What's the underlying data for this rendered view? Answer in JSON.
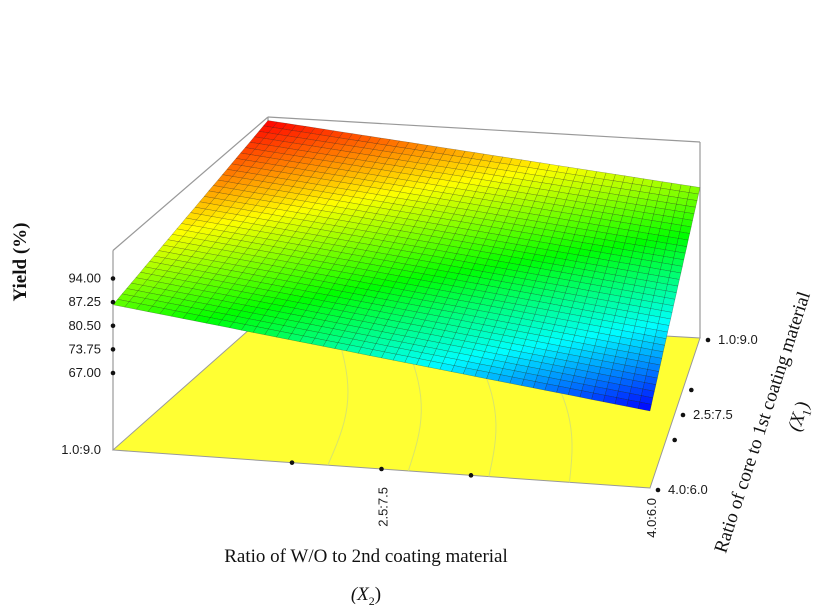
{
  "chart_data": {
    "type": "surface",
    "zlabel": "Yield (%)",
    "z_ticks": [
      "67.00",
      "73.75",
      "80.50",
      "87.25",
      "94.00"
    ],
    "zlim": [
      67.0,
      94.0
    ],
    "x2": {
      "label": "Ratio of W/O to 2nd coating material",
      "symbol": "(X",
      "subscript": "2",
      "close": ")",
      "ticks": [
        "1.0:9.0",
        "2.5:7.5",
        "4.0:6.0"
      ]
    },
    "x1": {
      "label": "Ratio of core to 1st coating material",
      "symbol": "(X",
      "subscript": "1",
      "close": ")",
      "ticks": [
        "1.0:9.0",
        "2.5:7.5",
        "4.0:6.0"
      ]
    },
    "corners": [
      {
        "x1": "1.0:9.0",
        "x2": "1.0:9.0",
        "yield": 100.0
      },
      {
        "x1": "4.0:6.0",
        "x2": "1.0:9.0",
        "yield": 86.5
      },
      {
        "x1": "1.0:9.0",
        "x2": "4.0:6.0",
        "yield": 88.0
      },
      {
        "x1": "4.0:6.0",
        "x2": "4.0:6.0",
        "yield": 67.0
      }
    ],
    "colormap": [
      "#0000ff",
      "#00ffff",
      "#00ff00",
      "#ffff00",
      "#ff0000"
    ],
    "floor_color": "#ffff33",
    "grid": false
  }
}
